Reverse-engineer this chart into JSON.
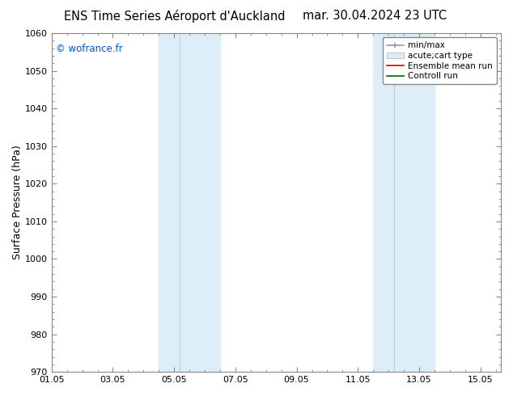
{
  "title_left": "ENS Time Series Aéroport d'Auckland",
  "title_right": "mar. 30.04.2024 23 UTC",
  "ylabel": "Surface Pressure (hPa)",
  "xlabel_ticks": [
    "01.05",
    "03.05",
    "05.05",
    "07.05",
    "09.05",
    "11.05",
    "13.05",
    "15.05"
  ],
  "xtick_positions": [
    0,
    2,
    4,
    6,
    8,
    10,
    12,
    14
  ],
  "xlim": [
    0,
    14.667
  ],
  "ylim": [
    970,
    1060
  ],
  "yticks": [
    970,
    980,
    990,
    1000,
    1010,
    1020,
    1030,
    1040,
    1050,
    1060
  ],
  "shaded_regions": [
    {
      "xstart": 3.5,
      "xend": 4.17,
      "color": "#ddeef8"
    },
    {
      "xstart": 4.17,
      "xend": 5.5,
      "color": "#ddeef8"
    },
    {
      "xstart": 10.5,
      "xend": 11.17,
      "color": "#ddeef8"
    },
    {
      "xstart": 11.17,
      "xend": 12.5,
      "color": "#ddeef8"
    }
  ],
  "shaded_dividers": [
    4.17,
    11.17
  ],
  "watermark_text": "© wofrance.fr",
  "watermark_color": "#0055cc",
  "background_color": "#ffffff",
  "shade_color": "#ddeef8",
  "shade_line_color": "#c8ddf0",
  "grid_color": "#cccccc",
  "spine_color": "#888888",
  "title_fontsize": 10.5,
  "ylabel_fontsize": 9,
  "tick_fontsize": 8,
  "legend_fontsize": 7.5
}
